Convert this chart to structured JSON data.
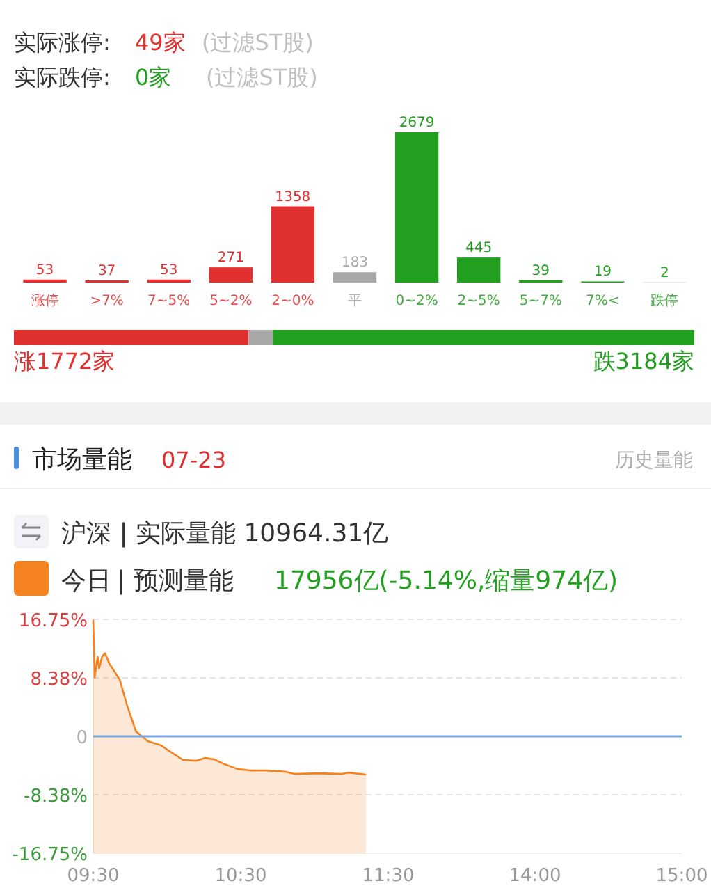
{
  "chart_data": [
    {
      "type": "bar",
      "categories": [
        "涨停",
        ">7%",
        "7~5%",
        "5~2%",
        "2~0%",
        "平",
        "0~2%",
        "2~5%",
        "5~7%",
        "7%<",
        "跌停"
      ],
      "values": [
        53,
        37,
        53,
        271,
        1358,
        183,
        2679,
        445,
        39,
        19,
        2
      ],
      "colors": [
        "#e03030",
        "#e03030",
        "#e03030",
        "#e03030",
        "#e03030",
        "#a8a8a8",
        "#23a020",
        "#23a020",
        "#23a020",
        "#23a020",
        "#23a020"
      ],
      "data_labels": true,
      "annotations": [
        "实际涨停:",
        "49家",
        "(过滤ST股)",
        "实际跌停:",
        "0家",
        "(过滤ST股)"
      ]
    },
    {
      "type": "bar",
      "orientation": "horizontal",
      "stacked": true,
      "categories": [
        null
      ],
      "series": [
        {
          "color": "#e03030",
          "values": [
            1772
          ],
          "value_labels": [
            "涨1772家"
          ]
        },
        {
          "color": "#a8a8a8",
          "values": [
            183
          ],
          "value_labels": [
            null
          ]
        },
        {
          "color": "#23a020",
          "values": [
            3184
          ],
          "value_labels": [
            "跌3184家"
          ]
        }
      ]
    },
    {
      "type": "area",
      "title": "市场量能",
      "subtitle": "07-23",
      "annotations": [
        "历史量能",
        "沪深 | 实际量能 10964.31亿",
        "| 预测量能",
        "17956亿(-5.14%,缩量974亿)"
      ],
      "x": [
        9.5,
        9.51,
        9.53,
        9.54,
        9.56,
        9.58,
        9.61,
        9.68,
        9.73,
        9.79,
        9.87,
        9.96,
        10.03,
        10.11,
        10.2,
        10.26,
        10.32,
        10.38,
        10.48,
        10.57,
        10.68,
        10.81,
        10.87,
        11.02,
        11.18,
        11.23,
        11.35
      ],
      "series": [
        {
          "name": "今日",
          "type": "line",
          "color": "#f58220",
          "values": [
            16.7,
            8.4,
            11.4,
            9.7,
            11.4,
            11.9,
            10.4,
            8.1,
            4.4,
            0.7,
            -0.7,
            -1.3,
            -2.3,
            -3.4,
            -3.5,
            -3.1,
            -3.3,
            -3.9,
            -4.7,
            -4.9,
            -4.9,
            -5.1,
            -5.4,
            -5.3,
            -5.4,
            -5.2,
            -5.5
          ],
          "upper": [
            16.7,
            8.4,
            11.4,
            9.7,
            11.4,
            11.9,
            10.4,
            8.1,
            4.4,
            0.7,
            -0.7,
            -1.3,
            -2.3,
            -3.4,
            -3.5,
            -3.1,
            -3.3,
            -3.9,
            -4.7,
            -4.9,
            -4.9,
            -5.1,
            -5.4,
            -5.3,
            -5.4,
            -5.2,
            -5.5
          ],
          "lower": [
            -16.75,
            -16.75,
            -16.75,
            -16.75,
            -16.75,
            -16.75,
            -16.75,
            -16.75,
            -16.75,
            -16.75,
            -16.75,
            -16.75,
            -16.75,
            -16.75,
            -16.75,
            -16.75,
            -16.75,
            -16.75,
            -16.75,
            -16.75,
            -16.75,
            -16.75,
            -16.75,
            -16.75,
            -16.75,
            -16.75,
            -16.75
          ]
        }
      ],
      "xlim": [
        9.5,
        11.5
      ],
      "xticks": [
        {
          "value": 9.5,
          "label": "09:30"
        },
        {
          "value": 10.5,
          "label": "10:30"
        },
        {
          "value": 11.5,
          "label": "11:30"
        }
      ],
      "ylim": [
        -16.75,
        16.75
      ],
      "yticks": [
        {
          "value": 16.75,
          "label": "16.75%"
        },
        {
          "value": 8.38,
          "label": "8.38%"
        },
        0,
        {
          "value": -8.38,
          "label": "-8.38%"
        },
        {
          "value": -16.75,
          "label": "-16.75%"
        }
      ],
      "grid": "y",
      "legend": "top left",
      "ref_lines": [
        {
          "axis": "y",
          "value": 0,
          "color": "#7aa8e0"
        }
      ]
    },
    {
      "type": "area",
      "xlim": [
        13,
        15
      ],
      "xticks": [
        {
          "value": 14,
          "label": "14:00"
        },
        {
          "value": 15,
          "label": "15:00"
        }
      ],
      "ylim": [
        -16.75,
        16.75
      ],
      "yticks": [
        {
          "value": 16.75,
          "label": null
        },
        {
          "value": 8.38,
          "label": null
        },
        {
          "value": 0,
          "label": null
        },
        {
          "value": -8.38,
          "label": null
        },
        {
          "value": -16.75,
          "label": null
        }
      ],
      "tick_labels": "x",
      "grid": "y",
      "ref_lines": [
        {
          "axis": "y",
          "value": 0,
          "color": "#7aa8e0"
        }
      ]
    }
  ]
}
